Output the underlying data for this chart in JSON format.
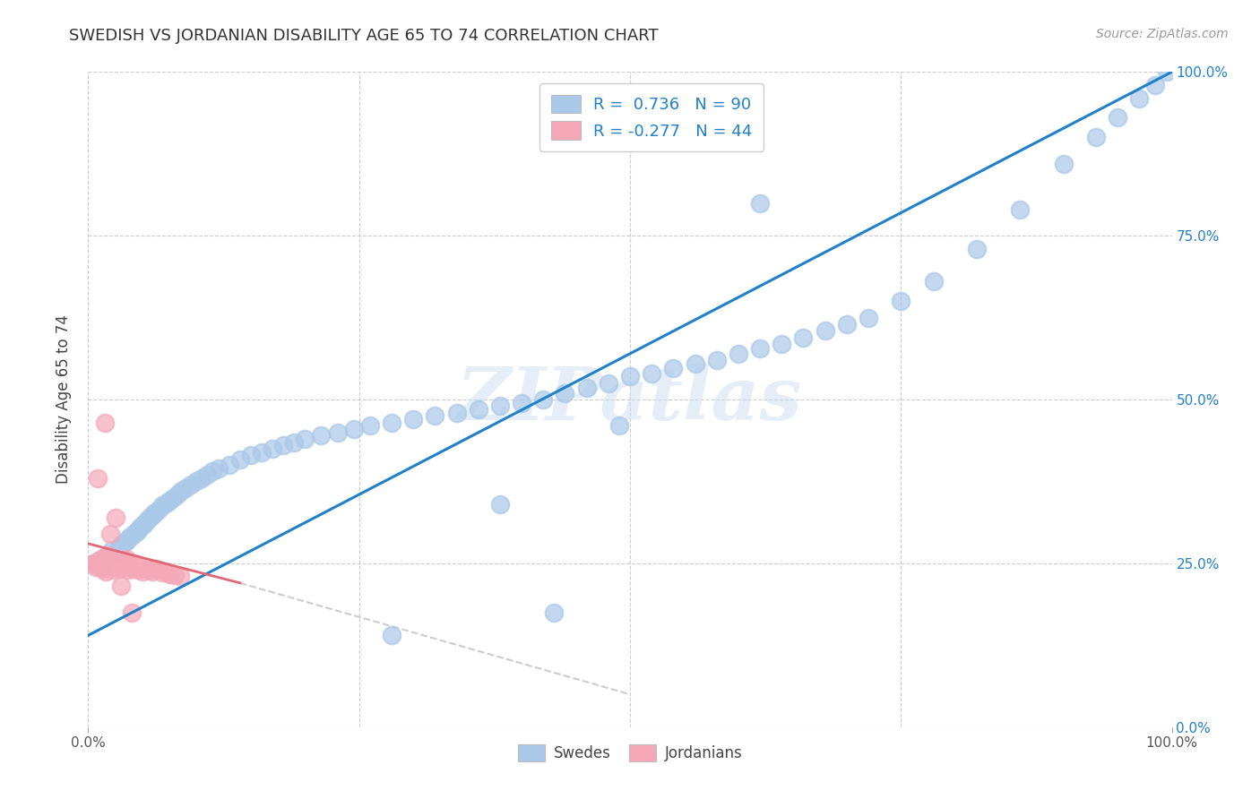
{
  "title": "SWEDISH VS JORDANIAN DISABILITY AGE 65 TO 74 CORRELATION CHART",
  "source": "Source: ZipAtlas.com",
  "ylabel": "Disability Age 65 to 74",
  "xlim": [
    0,
    1
  ],
  "ylim": [
    0,
    1
  ],
  "watermark": "ZIPatlas",
  "legend_r1": "R =  0.736",
  "legend_n1": "N = 90",
  "legend_r2": "R = -0.277",
  "legend_n2": "N = 44",
  "swedes_color": "#aac8e8",
  "jordanians_color": "#f4a8b8",
  "line_swedes_color": "#2080c8",
  "line_jordanians_color": "#e06878",
  "background_color": "#ffffff",
  "grid_color": "#cccccc",
  "swedes_x": [
    0.005,
    0.01,
    0.012,
    0.015,
    0.018,
    0.02,
    0.022,
    0.025,
    0.028,
    0.03,
    0.032,
    0.034,
    0.036,
    0.038,
    0.04,
    0.042,
    0.044,
    0.046,
    0.048,
    0.05,
    0.052,
    0.054,
    0.056,
    0.058,
    0.06,
    0.062,
    0.065,
    0.068,
    0.072,
    0.075,
    0.078,
    0.082,
    0.086,
    0.09,
    0.095,
    0.1,
    0.105,
    0.11,
    0.115,
    0.12,
    0.13,
    0.14,
    0.15,
    0.16,
    0.17,
    0.18,
    0.19,
    0.2,
    0.215,
    0.23,
    0.245,
    0.26,
    0.28,
    0.3,
    0.32,
    0.34,
    0.36,
    0.38,
    0.4,
    0.42,
    0.44,
    0.46,
    0.48,
    0.5,
    0.52,
    0.54,
    0.56,
    0.58,
    0.6,
    0.62,
    0.64,
    0.66,
    0.68,
    0.7,
    0.72,
    0.75,
    0.78,
    0.82,
    0.86,
    0.9,
    0.93,
    0.95,
    0.97,
    0.985,
    0.995,
    0.38,
    0.43,
    0.28,
    0.62,
    0.49
  ],
  "swedes_y": [
    0.25,
    0.255,
    0.245,
    0.26,
    0.258,
    0.262,
    0.27,
    0.268,
    0.272,
    0.278,
    0.28,
    0.282,
    0.285,
    0.29,
    0.292,
    0.295,
    0.298,
    0.3,
    0.305,
    0.308,
    0.31,
    0.315,
    0.318,
    0.322,
    0.325,
    0.328,
    0.332,
    0.338,
    0.342,
    0.345,
    0.35,
    0.355,
    0.36,
    0.365,
    0.37,
    0.375,
    0.38,
    0.385,
    0.39,
    0.395,
    0.4,
    0.408,
    0.415,
    0.42,
    0.425,
    0.43,
    0.435,
    0.44,
    0.445,
    0.45,
    0.455,
    0.46,
    0.465,
    0.47,
    0.475,
    0.48,
    0.485,
    0.49,
    0.495,
    0.5,
    0.51,
    0.518,
    0.525,
    0.535,
    0.54,
    0.548,
    0.555,
    0.56,
    0.57,
    0.578,
    0.585,
    0.595,
    0.605,
    0.615,
    0.625,
    0.65,
    0.68,
    0.73,
    0.79,
    0.86,
    0.9,
    0.93,
    0.96,
    0.98,
    1.0,
    0.34,
    0.175,
    0.14,
    0.8,
    0.46
  ],
  "jordanians_x": [
    0.005,
    0.007,
    0.009,
    0.01,
    0.012,
    0.013,
    0.015,
    0.016,
    0.018,
    0.019,
    0.021,
    0.022,
    0.024,
    0.025,
    0.027,
    0.028,
    0.03,
    0.032,
    0.034,
    0.035,
    0.037,
    0.038,
    0.04,
    0.042,
    0.044,
    0.046,
    0.048,
    0.05,
    0.053,
    0.056,
    0.059,
    0.062,
    0.065,
    0.068,
    0.072,
    0.075,
    0.08,
    0.085,
    0.009,
    0.02,
    0.03,
    0.04,
    0.015,
    0.025
  ],
  "jordanians_y": [
    0.25,
    0.245,
    0.252,
    0.248,
    0.255,
    0.242,
    0.26,
    0.238,
    0.262,
    0.244,
    0.256,
    0.24,
    0.258,
    0.245,
    0.25,
    0.242,
    0.248,
    0.252,
    0.244,
    0.256,
    0.24,
    0.25,
    0.245,
    0.242,
    0.248,
    0.24,
    0.245,
    0.238,
    0.242,
    0.24,
    0.238,
    0.242,
    0.24,
    0.236,
    0.238,
    0.234,
    0.232,
    0.23,
    0.38,
    0.295,
    0.215,
    0.175,
    0.465,
    0.32
  ]
}
